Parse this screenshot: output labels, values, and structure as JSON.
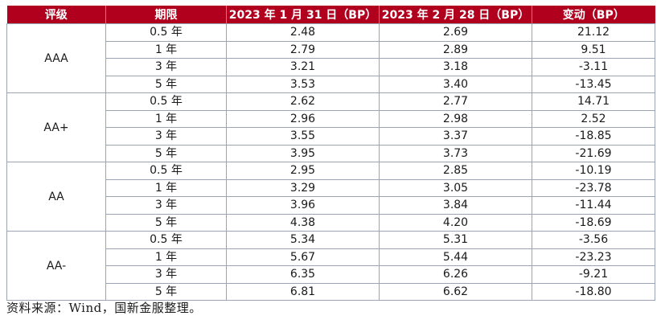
{
  "headers": [
    "评级",
    "期限",
    "2023 年 1 月 31 日（BP）",
    "2023 年 2 月 28 日（BP）",
    "变动（BP）"
  ],
  "groups": [
    {
      "rating": "AAA",
      "rows": [
        {
          "term": "0.5 年",
          "jan": "2.48",
          "feb": "2.69",
          "change": "21.12"
        },
        {
          "term": "1 年",
          "jan": "2.79",
          "feb": "2.89",
          "change": "9.51"
        },
        {
          "term": "3 年",
          "jan": "3.21",
          "feb": "3.18",
          "change": "-3.11"
        },
        {
          "term": "5 年",
          "jan": "3.53",
          "feb": "3.40",
          "change": "-13.45"
        }
      ]
    },
    {
      "rating": "AA+",
      "rows": [
        {
          "term": "0.5 年",
          "jan": "2.62",
          "feb": "2.77",
          "change": "14.71"
        },
        {
          "term": "1 年",
          "jan": "2.96",
          "feb": "2.98",
          "change": "2.52"
        },
        {
          "term": "3 年",
          "jan": "3.55",
          "feb": "3.37",
          "change": "-18.85"
        },
        {
          "term": "5 年",
          "jan": "3.95",
          "feb": "3.73",
          "change": "-21.69"
        }
      ]
    },
    {
      "rating": "AA",
      "rows": [
        {
          "term": "0.5 年",
          "jan": "2.95",
          "feb": "2.85",
          "change": "-10.19"
        },
        {
          "term": "1 年",
          "jan": "3.29",
          "feb": "3.05",
          "change": "-23.78"
        },
        {
          "term": "3 年",
          "jan": "3.96",
          "feb": "3.84",
          "change": "-11.44"
        },
        {
          "term": "5 年",
          "jan": "4.38",
          "feb": "4.20",
          "change": "-18.69"
        }
      ]
    },
    {
      "rating": "AA-",
      "rows": [
        {
          "term": "0.5 年",
          "jan": "5.34",
          "feb": "5.31",
          "change": "-3.56"
        },
        {
          "term": "1 年",
          "jan": "5.67",
          "feb": "5.44",
          "change": "-23.23"
        },
        {
          "term": "3 年",
          "jan": "6.35",
          "feb": "6.26",
          "change": "-9.21"
        },
        {
          "term": "5 年",
          "jan": "6.81",
          "feb": "6.62",
          "change": "-18.80"
        }
      ]
    }
  ],
  "source": "资料来源：Wind，国新金服整理。",
  "colors": {
    "header_bg": "#b0001e",
    "header_text": "#ffffff",
    "border": "#9aa4b4"
  }
}
